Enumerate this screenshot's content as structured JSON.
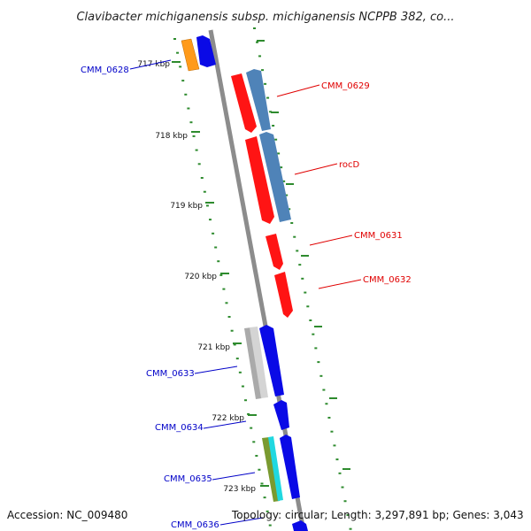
{
  "title": "Clavibacter michiganensis subsp. michiganensis NCPPB 382, co...",
  "footer": {
    "accession": "Accession: NC_009480",
    "summary": "Topology: circular; Length: 3,297,891 bp; Genes: 3,043"
  },
  "colors": {
    "backbone": "#8c8c8c",
    "tick": "#2e8b2e",
    "red": "#ff1414",
    "steelblue": "#4f83b8",
    "blue": "#0a0ae6",
    "orange": "#ff9a1a",
    "gray": "#c8c8c8",
    "olive": "#7a9a30",
    "cyan": "#20d8e0",
    "label_red": "#e00000",
    "label_blue": "#0000c8"
  },
  "ticks": [
    "717 kbp",
    "718 kbp",
    "719 kbp",
    "720 kbp",
    "721 kbp",
    "722 kbp",
    "723 kbp"
  ],
  "genes": [
    {
      "name": "CMM_0628",
      "label_color": "blue"
    },
    {
      "name": "CMM_0629",
      "label_color": "red"
    },
    {
      "name": "rocD",
      "label_color": "red"
    },
    {
      "name": "CMM_0631",
      "label_color": "red"
    },
    {
      "name": "CMM_0632",
      "label_color": "red"
    },
    {
      "name": "CMM_0633",
      "label_color": "blue"
    },
    {
      "name": "CMM_0634",
      "label_color": "blue"
    },
    {
      "name": "CMM_0635",
      "label_color": "blue"
    },
    {
      "name": "CMM_0636",
      "label_color": "blue"
    }
  ]
}
